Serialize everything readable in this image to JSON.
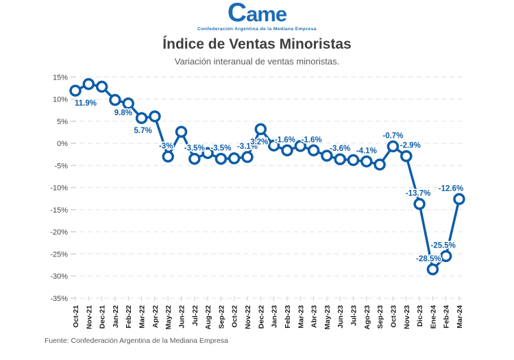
{
  "logo": {
    "wordmark": "Came",
    "subtitle": "Confederación Argentina de la Mediana Empresa"
  },
  "title": "Índice de Ventas Minoristas",
  "subtitle": "Variación interanual de ventas minoristas.",
  "source": "Fuente: Confederación Argentina de la Mediana Empresa",
  "colors": {
    "accent_blue": "#0d5da8",
    "logo_blue": "#1b6cb5",
    "grid_gray": "#e7e7e7",
    "tick_gray": "#cfcfcf",
    "y_label_gray": "#454545",
    "month_black": "#1a1a1a"
  },
  "chart_data": {
    "type": "line",
    "title": "Índice de Ventas Minoristas",
    "subtitle": "Variación interanual de ventas minoristas.",
    "xlabel": "",
    "ylabel": "",
    "ylim": [
      -35,
      15
    ],
    "ytick_step": 5,
    "ytick_labels": [
      "15%",
      "10%",
      "5%",
      "0%",
      "-5%",
      "-10%",
      "-15%",
      "-20%",
      "-25%",
      "-30%",
      "-35%"
    ],
    "grid": "horizontal-dashed",
    "legend": "none",
    "marker": "open-circle",
    "categories": [
      "Oct-21",
      "Nov-21",
      "Dec-21",
      "Jan-22",
      "Feb-22",
      "Mar-22",
      "Apr-22",
      "May-22",
      "Jun-22",
      "Jul-22",
      "Aug-22",
      "Sep-22",
      "Oct-22",
      "Nov-22",
      "Dec-22",
      "Jan-23",
      "Feb-23",
      "Mar-23",
      "Abr-23",
      "May-23",
      "Jun-23",
      "Jul-23",
      "Ago-23",
      "Sep-23",
      "Oct-23",
      "Nov-23",
      "Dic-23",
      "Ene-24",
      "Feb-24",
      "Mar-24"
    ],
    "values": [
      11.9,
      13.4,
      12.8,
      9.8,
      9.0,
      5.7,
      6.1,
      -3.0,
      2.6,
      -3.5,
      -2.2,
      -3.5,
      -3.4,
      -3.1,
      3.2,
      -0.5,
      -1.6,
      -0.6,
      -1.6,
      -2.8,
      -3.6,
      -3.8,
      -4.1,
      -4.8,
      -0.7,
      -2.9,
      -13.7,
      -28.5,
      -25.5,
      -12.6
    ],
    "point_labels": [
      {
        "text": "11.9%",
        "pos": "below",
        "dx": 15
      },
      null,
      null,
      {
        "text": "9.8%",
        "pos": "below",
        "dx": 12
      },
      null,
      {
        "text": "5.7%",
        "pos": "below",
        "dx": 2
      },
      null,
      {
        "text": "-3%",
        "pos": "above",
        "dx": -3
      },
      null,
      {
        "text": "-3.5%",
        "pos": "above",
        "dx": 0
      },
      null,
      {
        "text": "-3.5%",
        "pos": "above",
        "dx": 0
      },
      null,
      {
        "text": "-3.1%",
        "pos": "above",
        "dx": 0
      },
      {
        "text": "3.2%",
        "pos": "below",
        "dx": -2
      },
      null,
      {
        "text": "-1.6%",
        "pos": "above",
        "dx": -3
      },
      null,
      {
        "text": "-1.6%",
        "pos": "above",
        "dx": -3
      },
      null,
      {
        "text": "-3.6%",
        "pos": "above",
        "dx": 0
      },
      null,
      {
        "text": "-4.1%",
        "pos": "above",
        "dx": 0
      },
      null,
      {
        "text": "-0.7%",
        "pos": "above",
        "dx": 0
      },
      {
        "text": "-2.9%",
        "pos": "above",
        "dx": 6
      },
      {
        "text": "-13.7%",
        "pos": "above",
        "dx": -2
      },
      {
        "text": "-28.5%",
        "pos": "above",
        "dx": -6
      },
      {
        "text": "-25.5%",
        "pos": "above",
        "dx": -4
      },
      {
        "text": "-12.6%",
        "pos": "above",
        "dx": -12
      }
    ]
  }
}
